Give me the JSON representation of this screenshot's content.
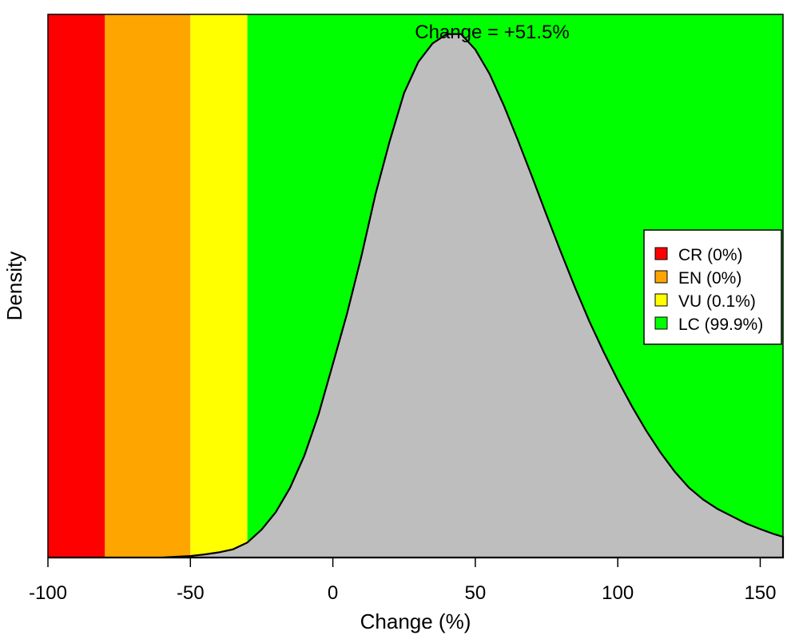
{
  "chart_data": {
    "type": "area",
    "title": "",
    "xlabel": "Change (%)",
    "ylabel": "Density",
    "xlim": [
      -100,
      158
    ],
    "ylim": [
      0,
      1.05
    ],
    "x_ticks": [
      -100,
      -50,
      0,
      50,
      100,
      150
    ],
    "x_tick_labels": [
      "-100",
      "-50",
      "0",
      "50",
      "100",
      "150"
    ],
    "y_ticks_shown": false,
    "annotation": "Change = +51.5%",
    "bands": [
      {
        "label": "CR",
        "from": -100,
        "to": -80,
        "color": "#FF0000"
      },
      {
        "label": "EN",
        "from": -80,
        "to": -50,
        "color": "#FFA500"
      },
      {
        "label": "VU",
        "from": -50,
        "to": -30,
        "color": "#FFFF00"
      },
      {
        "label": "LC",
        "from": -30,
        "to": 158,
        "color": "#00FF00"
      }
    ],
    "legend": {
      "placement": "right",
      "entries": [
        {
          "label": "CR (0%)",
          "color": "#FF0000"
        },
        {
          "label": "EN (0%)",
          "color": "#FFA500"
        },
        {
          "label": "VU (0.1%)",
          "color": "#FFFF00"
        },
        {
          "label": "LC (99.9%)",
          "color": "#00FF00"
        }
      ]
    },
    "density_fill_color": "#BEBEBE",
    "series": [
      {
        "x": [
          -100,
          -60,
          -50,
          -45,
          -40,
          -35,
          -30,
          -25,
          -20,
          -15,
          -10,
          -5,
          0,
          5,
          10,
          15,
          20,
          25,
          30,
          35,
          40,
          45,
          50,
          55,
          60,
          65,
          70,
          75,
          80,
          85,
          90,
          95,
          100,
          105,
          110,
          115,
          120,
          125,
          130,
          135,
          140,
          145,
          150,
          155,
          158
        ],
        "y": [
          0.0,
          0.0,
          0.003,
          0.006,
          0.01,
          0.016,
          0.029,
          0.054,
          0.088,
          0.135,
          0.197,
          0.277,
          0.374,
          0.472,
          0.582,
          0.703,
          0.806,
          0.898,
          0.958,
          0.994,
          1.012,
          1.012,
          0.982,
          0.935,
          0.874,
          0.806,
          0.735,
          0.662,
          0.591,
          0.522,
          0.457,
          0.398,
          0.343,
          0.292,
          0.245,
          0.203,
          0.166,
          0.135,
          0.112,
          0.094,
          0.08,
          0.066,
          0.055,
          0.045,
          0.04
        ]
      }
    ]
  }
}
